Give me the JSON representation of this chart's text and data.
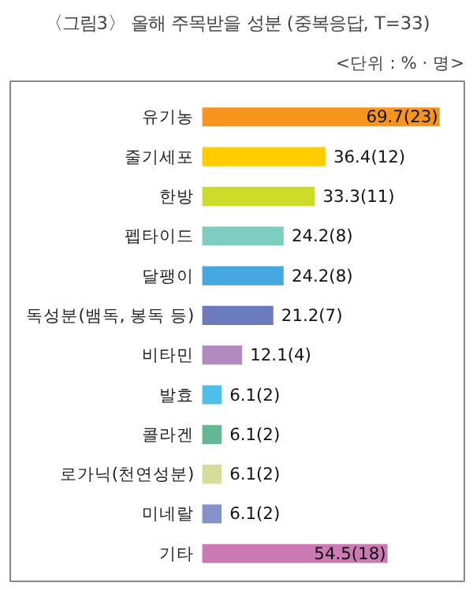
{
  "chart_data": {
    "type": "bar",
    "orientation": "horizontal",
    "title": "〈그림3〉 올해 주목받을 성분 (중복응답, T=33)",
    "annotations": [
      "<단위 : % · 명>"
    ],
    "categories": [
      "유기농",
      "줄기세포",
      "한방",
      "펩타이드",
      "달팽이",
      "독성분(뱀독, 봉독 등)",
      "비타민",
      "발효",
      "콜라겐",
      "로가닉(천연성분)",
      "미네랄",
      "기타"
    ],
    "values": [
      69.7,
      36.4,
      33.3,
      24.2,
      24.2,
      21.2,
      12.1,
      6.1,
      6.1,
      6.1,
      6.1,
      54.5
    ],
    "value_labels": [
      "69.7(23)",
      "36.4(12)",
      "33.3(11)",
      "24.2(8)",
      "24.2(8)",
      "21.2(7)",
      "12.1(4)",
      "6.1(2)",
      "6.1(2)",
      "6.1(2)",
      "6.1(2)",
      "54.5(18)"
    ],
    "colors": [
      "#f7941d",
      "#ffcc00",
      "#cddc29",
      "#7dcdc0",
      "#45a8e0",
      "#6b7bbd",
      "#b28ac0",
      "#4dbfe9",
      "#66b893",
      "#d6dc9a",
      "#8592c9",
      "#cc7ab3"
    ],
    "grid": false
  }
}
